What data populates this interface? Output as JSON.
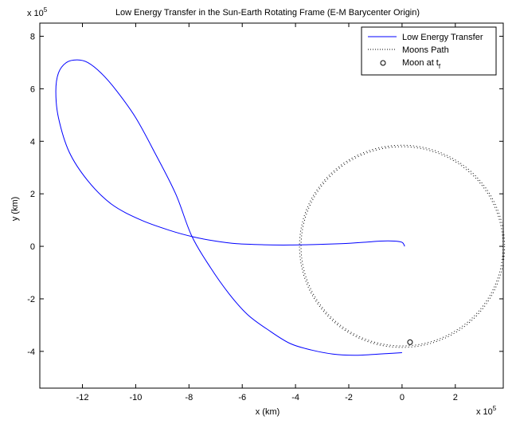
{
  "chart_data": {
    "type": "line",
    "title": "Low Energy Transfer in the Sun-Earth Rotating Frame (E-M Barycenter Origin)",
    "xlabel": "x (km)",
    "ylabel": "y (km)",
    "x_scale_label": "x 10",
    "x_scale_exponent": "5",
    "y_scale_label": "x 10",
    "y_scale_exponent": "5",
    "xlim": [
      -13.6,
      3.8
    ],
    "ylim": [
      -5.4,
      8.5
    ],
    "x_ticks": [
      -12,
      -10,
      -8,
      -6,
      -4,
      -2,
      0,
      2
    ],
    "x_tick_labels": [
      "-12",
      "-10",
      "-8",
      "-6",
      "-4",
      "-2",
      "0",
      "2"
    ],
    "y_ticks": [
      -4,
      -2,
      0,
      2,
      4,
      6,
      8
    ],
    "y_tick_labels": [
      "-4",
      "-2",
      "0",
      "2",
      "4",
      "6",
      "8"
    ],
    "grid": false,
    "legend_position": "top-right",
    "legend": {
      "transfer": "Low Energy Transfer",
      "moon_path": "Moons Path",
      "moon_at": "Moon at t",
      "moon_at_sub": "f"
    },
    "series": [
      {
        "name": "Low Energy Transfer",
        "color": "#0000ff",
        "style": "solid",
        "x": [
          0.1,
          0.0,
          -0.3,
          -0.8,
          -1.5,
          -2.3,
          -3.2,
          -4.2,
          -5.2,
          -6.2,
          -7.0,
          -7.8,
          -8.7,
          -9.8,
          -10.9,
          -11.8,
          -12.5,
          -12.9,
          -13.0,
          -12.9,
          -12.6,
          -12.2,
          -11.8,
          -11.3,
          -10.7,
          -10.0,
          -9.3,
          -8.5,
          -7.9,
          -7.2,
          -6.5,
          -5.8,
          -5.0,
          -4.2,
          -3.4,
          -2.6,
          -1.8,
          -1.1,
          -0.5,
          0.0
        ],
        "y": [
          0.0,
          0.15,
          0.2,
          0.2,
          0.15,
          0.1,
          0.07,
          0.05,
          0.06,
          0.1,
          0.2,
          0.35,
          0.6,
          1.0,
          1.6,
          2.5,
          3.6,
          4.9,
          5.9,
          6.6,
          7.0,
          7.1,
          7.0,
          6.6,
          5.9,
          4.9,
          3.6,
          2.0,
          0.4,
          -0.8,
          -1.8,
          -2.6,
          -3.2,
          -3.7,
          -3.95,
          -4.1,
          -4.15,
          -4.12,
          -4.08,
          -4.05
        ]
      },
      {
        "name": "Moons Path",
        "color": "#000000",
        "style": "dotted",
        "center": [
          0,
          0
        ],
        "radius": 3.85
      }
    ],
    "marker": {
      "name": "Moon at t_f",
      "x": 0.3,
      "y": -3.65,
      "symbol": "o"
    }
  }
}
